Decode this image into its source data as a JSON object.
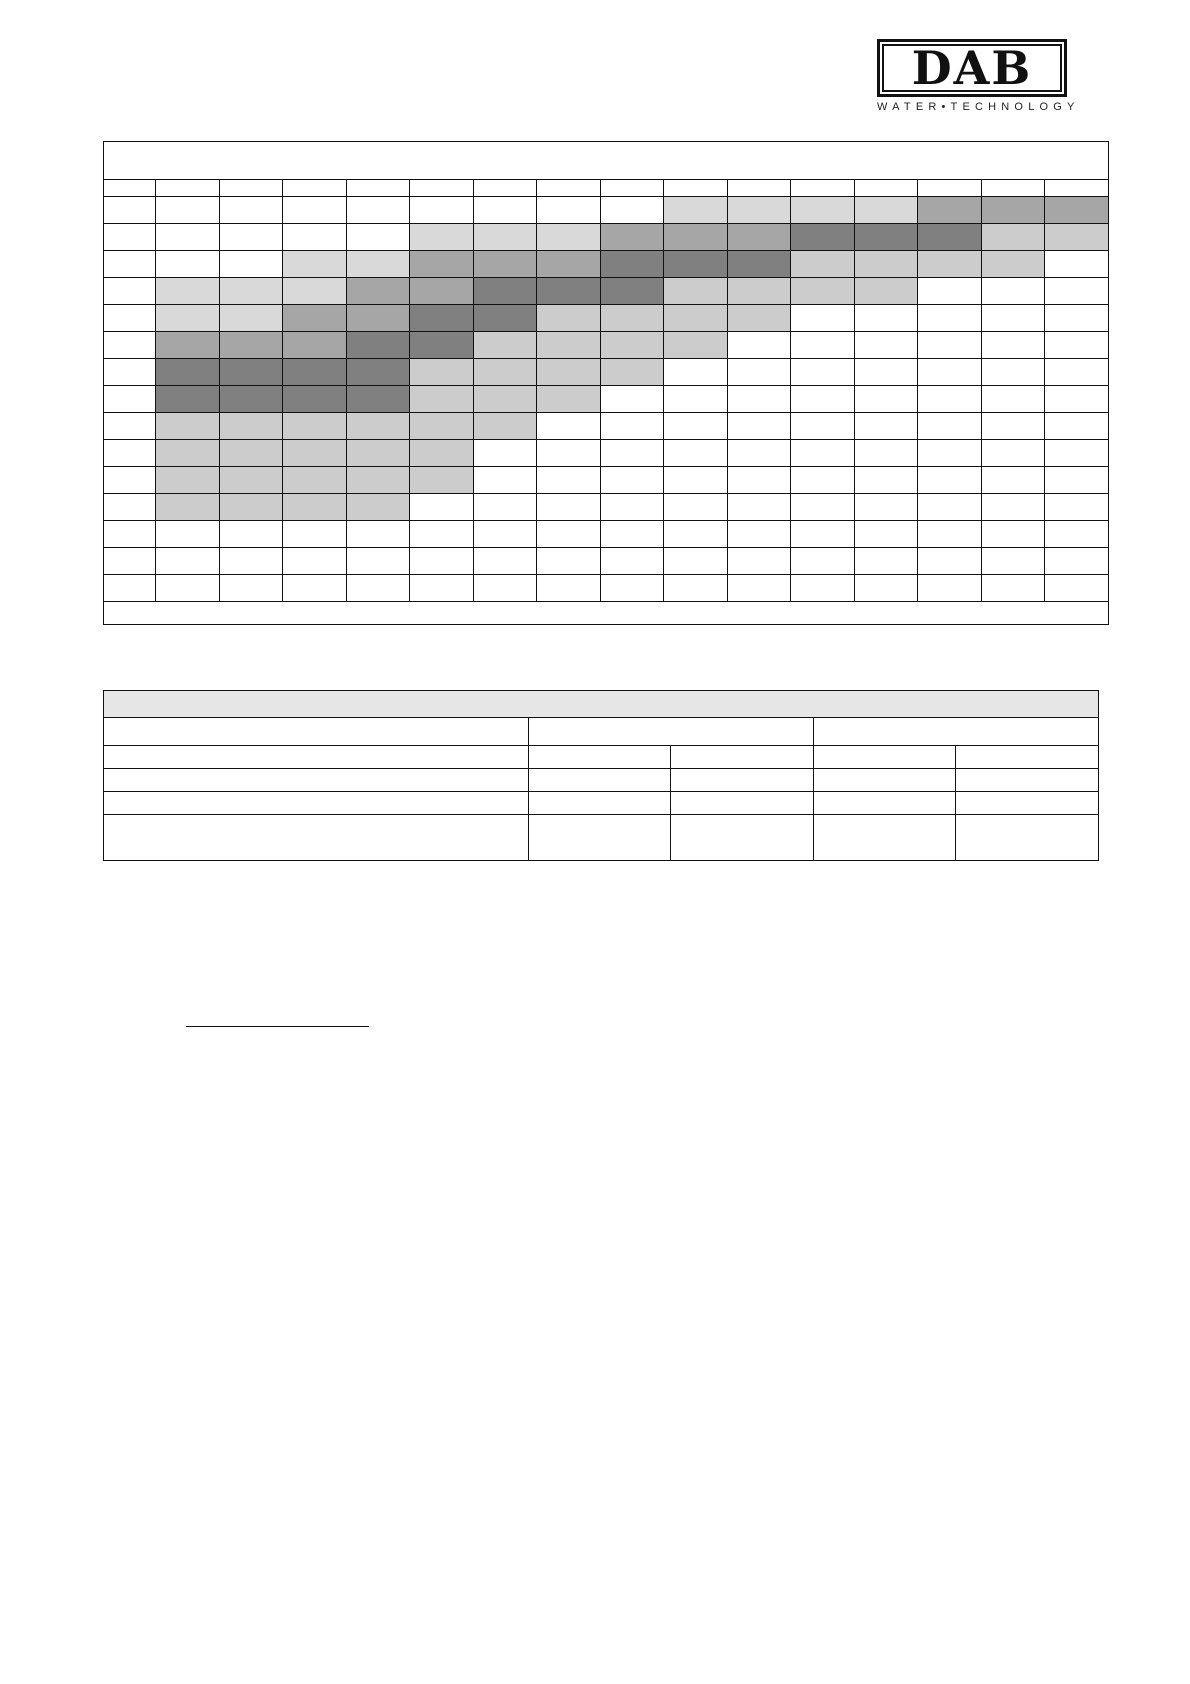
{
  "logo": {
    "brand": "DAB",
    "tagline": "WATER•TECHNOLOGY"
  },
  "shade_colors": {
    "0": "#ffffff",
    "1": "#d9d9d9",
    "2": "#a6a6a6",
    "3": "#808080",
    "4": "#cccccc"
  },
  "shading_grid": [
    [
      0,
      0,
      0,
      0,
      0,
      0,
      0,
      0,
      1,
      1,
      1,
      1,
      2,
      2,
      2
    ],
    [
      0,
      0,
      0,
      0,
      1,
      1,
      1,
      2,
      2,
      2,
      3,
      3,
      3,
      4,
      4
    ],
    [
      0,
      0,
      1,
      1,
      2,
      2,
      2,
      3,
      3,
      3,
      4,
      4,
      4,
      4,
      0
    ],
    [
      1,
      1,
      1,
      2,
      2,
      3,
      3,
      3,
      4,
      4,
      4,
      4,
      0,
      0,
      0
    ],
    [
      1,
      1,
      2,
      2,
      3,
      3,
      4,
      4,
      4,
      4,
      0,
      0,
      0,
      0,
      0
    ],
    [
      2,
      2,
      2,
      3,
      3,
      4,
      4,
      4,
      4,
      0,
      0,
      0,
      0,
      0,
      0
    ],
    [
      3,
      3,
      3,
      3,
      4,
      4,
      4,
      4,
      0,
      0,
      0,
      0,
      0,
      0,
      0
    ],
    [
      3,
      3,
      3,
      3,
      4,
      4,
      4,
      0,
      0,
      0,
      0,
      0,
      0,
      0,
      0
    ],
    [
      4,
      4,
      4,
      4,
      4,
      4,
      0,
      0,
      0,
      0,
      0,
      0,
      0,
      0,
      0
    ],
    [
      4,
      4,
      4,
      4,
      4,
      0,
      0,
      0,
      0,
      0,
      0,
      0,
      0,
      0,
      0
    ],
    [
      4,
      4,
      4,
      4,
      4,
      0,
      0,
      0,
      0,
      0,
      0,
      0,
      0,
      0,
      0
    ],
    [
      4,
      4,
      4,
      4,
      0,
      0,
      0,
      0,
      0,
      0,
      0,
      0,
      0,
      0,
      0
    ],
    [
      0,
      0,
      0,
      0,
      0,
      0,
      0,
      0,
      0,
      0,
      0,
      0,
      0,
      0,
      0
    ],
    [
      0,
      0,
      0,
      0,
      0,
      0,
      0,
      0,
      0,
      0,
      0,
      0,
      0,
      0,
      0
    ],
    [
      0,
      0,
      0,
      0,
      0,
      0,
      0,
      0,
      0,
      0,
      0,
      0,
      0,
      0,
      0
    ]
  ]
}
